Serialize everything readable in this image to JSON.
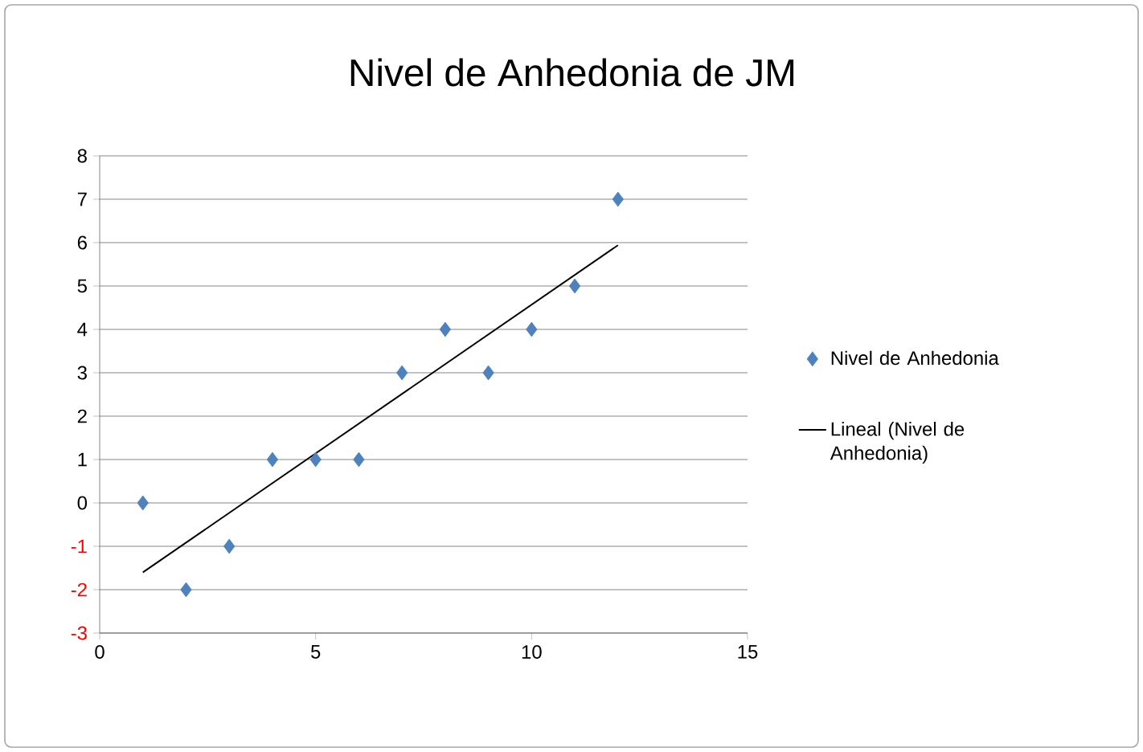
{
  "chart_data": {
    "type": "scatter",
    "title": "Nivel de Anhedonia de JM",
    "series": [
      {
        "name": "Nivel de Anhedonia",
        "color": "#4f81bd",
        "marker": "diamond",
        "x": [
          1,
          2,
          3,
          4,
          5,
          6,
          7,
          8,
          9,
          10,
          11,
          12
        ],
        "values": [
          0,
          -2,
          -1,
          1,
          1,
          1,
          3,
          4,
          3,
          4,
          5,
          7
        ]
      },
      {
        "name": "Lineal (Nivel de Anhedonia)",
        "type": "line",
        "color": "#000000",
        "marker": "none",
        "x": [
          1,
          12
        ],
        "values": [
          -1.6,
          5.94
        ]
      }
    ],
    "xlim": [
      0,
      15
    ],
    "xticks": [
      0,
      5,
      10,
      15
    ],
    "ylim": [
      -3,
      8
    ],
    "yticks": [
      -3,
      -2,
      -1,
      0,
      1,
      2,
      3,
      4,
      5,
      6,
      7,
      8
    ],
    "grid": "y",
    "legend": "right"
  }
}
